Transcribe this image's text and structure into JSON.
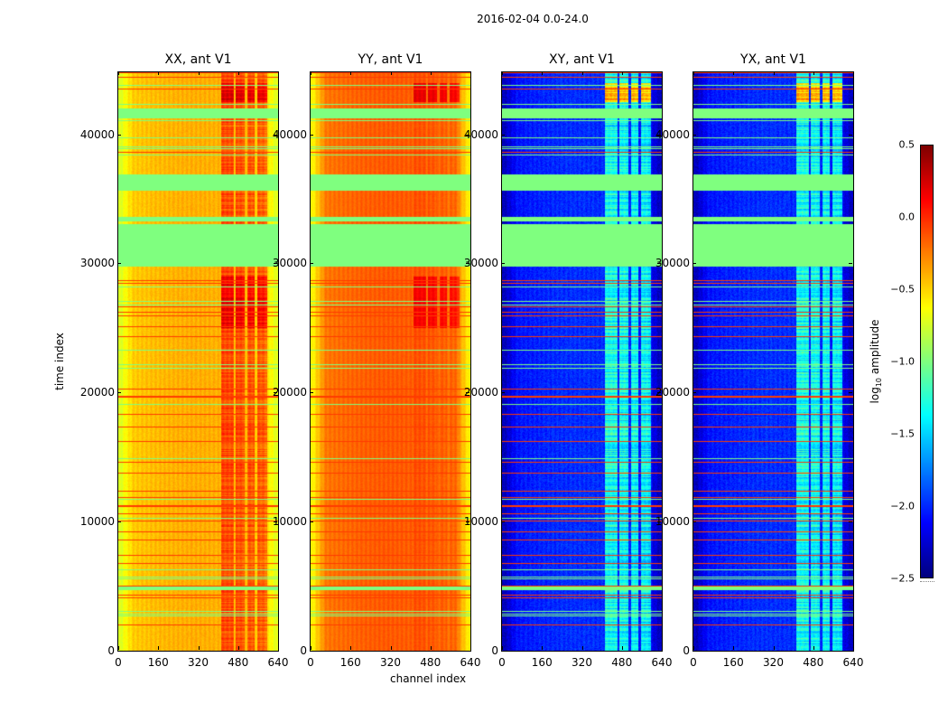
{
  "figure": {
    "suptitle": "2016-02-04 0.0-24.0",
    "ylabel": "time index",
    "xlabel": "channel index"
  },
  "chart_data": {
    "type": "heatmap",
    "title": "2016-02-04 0.0-24.0",
    "colormap": "jet",
    "colorbar": {
      "label_main": "log",
      "label_sub": "10",
      "label_tail": " amplitude",
      "vmin": -2.5,
      "vmax": 0.5,
      "ticks": [
        "0.5",
        "0.0",
        "−0.5",
        "−1.0",
        "−1.5",
        "−2.0",
        "−2.5"
      ],
      "tick_values": [
        0.5,
        0.0,
        -0.5,
        -1.0,
        -1.5,
        -2.0,
        -2.5
      ],
      "masked_value": -1.0
    },
    "x_range": [
      0,
      640
    ],
    "y_range": [
      0,
      44800
    ],
    "xticks": [
      "0",
      "160",
      "320",
      "480",
      "640"
    ],
    "xtick_values": [
      0,
      160,
      320,
      480,
      640
    ],
    "yticks": [
      "0",
      "10000",
      "20000",
      "30000",
      "40000"
    ],
    "ytick_values": [
      0,
      10000,
      20000,
      30000,
      40000
    ],
    "masked_time_ranges": [
      [
        29800,
        33100
      ],
      [
        33300,
        33600
      ],
      [
        35700,
        36900
      ],
      [
        41300,
        42000
      ],
      [
        4700,
        5000
      ]
    ],
    "rfi_channel_bands": [
      [
        410,
        460
      ],
      [
        470,
        505
      ],
      [
        515,
        545
      ],
      [
        555,
        595
      ]
    ],
    "panels": [
      {
        "title": "XX, ant V1",
        "base_level": -0.45,
        "edge_level": -0.7,
        "rfi_boost": 0.35,
        "noise": 0.08
      },
      {
        "title": "YY, ant V1",
        "base_level": -0.2,
        "edge_level": -0.6,
        "rfi_boost": 0.05,
        "noise": 0.05
      },
      {
        "title": "XY, ant V1",
        "base_level": -2.05,
        "edge_level": -2.3,
        "rfi_boost": 0.75,
        "noise": 0.18
      },
      {
        "title": "YX, ant V1",
        "base_level": -2.05,
        "edge_level": -2.3,
        "rfi_boost": 0.75,
        "noise": 0.18
      }
    ]
  }
}
